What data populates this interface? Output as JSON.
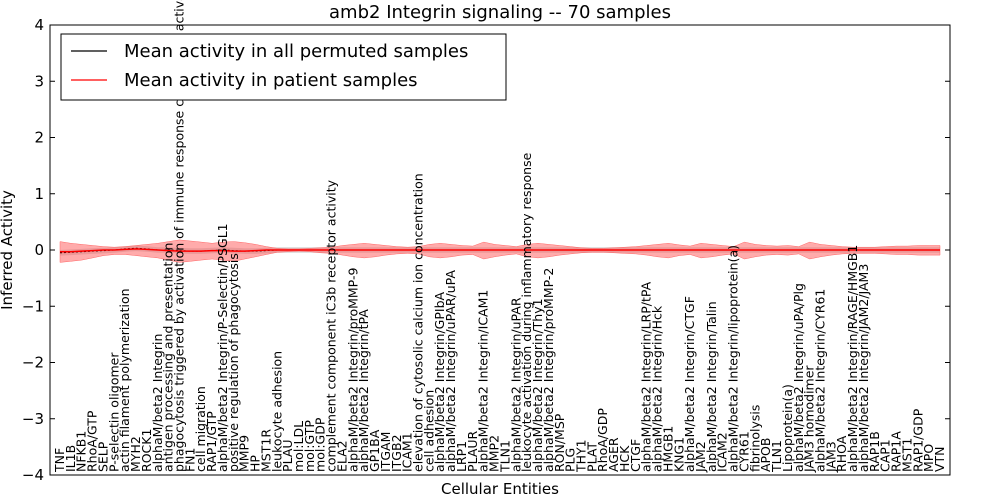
{
  "chart_data": {
    "type": "line",
    "title": "amb2 Integrin signaling -- 70 samples",
    "xlabel": "Cellular Entities",
    "ylabel": "Inferred Activity",
    "ylim": [
      -4,
      4
    ],
    "yticks": [
      "−4",
      "−3",
      "−2",
      "−1",
      "0",
      "1",
      "2",
      "3",
      "4"
    ],
    "legend": {
      "position": "top-left",
      "entries": [
        {
          "label": "Mean activity in all permuted samples",
          "color": "#000000"
        },
        {
          "label": "Mean activity in patient samples",
          "color": "#ff0000"
        }
      ]
    },
    "colors": {
      "patient_line": "#ff0000",
      "patient_band": "#ff6666",
      "permuted_line": "#000000",
      "permuted_band": "#bbbbbb"
    },
    "categories": [
      "TNF",
      "IL1B",
      "NFKB1",
      "RhoA/GTP",
      "SELP",
      "P-selectin oligomer",
      "actin filament polymerization",
      "MYH2",
      "ROCK1",
      "alphaM/beta2 Integrin",
      "antigen processing and presentation",
      "phagocytosis triggered by activation of immune response cell surface activating receptor",
      "FN1",
      "cell migration",
      "RAP1/GTP",
      "alphaM/beta2 Integrin/P-Selectin/PSGL1",
      "positive regulation of phagocytosis",
      "MMP9",
      "HP",
      "MST1R",
      "leukocyte adhesion",
      "PLAU",
      "mol:LDL",
      "mol:GTP",
      "mol:GDP",
      "complement component iC3b receptor activity",
      "ELA2",
      "alphaM/beta2 Integrin/proMMP-9",
      "alphaM/beta2 Integrin/tPA",
      "GP1BA",
      "ITGAM",
      "ITGB2",
      "ICAM1",
      "elevation of cytosolic calcium ion concentration",
      "cell adhesion",
      "alphaM/beta2 Integrin/GPIbA",
      "alphaM/beta2 Integrin/uPAR/uPA",
      "LRP1",
      "PLAUR",
      "alphaM/beta2 Integrin/ICAM1",
      "MMP2",
      "TLN1",
      "alphaM/beta2 Integrin/uPAR",
      "leukocyte activation during inflammatory response",
      "alphaM/beta2 Integrin/Thy1",
      "alphaM/beta2 Integrin/proMMP-2",
      "RON/MSP",
      "PLG",
      "THY1",
      "PLAT",
      "RhoA/GDP",
      "AGER",
      "HCK",
      "CTGF",
      "alphaM/beta2 Integrin/LRP/tPA",
      "alphaM/beta2 Integrin/Hck",
      "HMGB1",
      "KNG1",
      "alphaM/beta2 Integrin/CTGF",
      "JAM2",
      "alphaM/beta2 Integrin/Talin",
      "ICAM2",
      "alphaM/beta2 Integrin/lipoprotein(a)",
      "CYR61",
      "fibrinolysis",
      "APOB",
      "TLN1",
      "Lipoprotein(a)",
      "alphaM/beta2 Integrin/uPA/Plg",
      "JAM3 homodimer",
      "alphaM/beta2 Integrin/CYR61",
      "JAM3",
      "RHOA",
      "alphaM/beta2 Integrin/RAGE/HMGB1",
      "alphaM/beta2 Integrin/JAM2/JAM3",
      "RAP1B",
      "CAP1",
      "RAP1A",
      "MST1",
      "RAP1/GDP",
      "MPO",
      "VTN"
    ],
    "series": [
      {
        "name": "Mean activity in all permuted samples",
        "values": [
          -0.05,
          -0.04,
          -0.03,
          -0.02,
          -0.01,
          0.0,
          0.02,
          0.03,
          0.02,
          0.0,
          0.0,
          -0.01,
          -0.02,
          -0.02,
          -0.01,
          0.0,
          -0.01,
          -0.02,
          -0.02,
          -0.01,
          0.0,
          0.0,
          0.0,
          0.0,
          0.0,
          0.0,
          0.0,
          0.0,
          0.0,
          0.0,
          0.0,
          0.0,
          0.0,
          0.0,
          0.0,
          0.0,
          0.0,
          0.0,
          0.0,
          0.0,
          0.0,
          0.0,
          0.0,
          0.0,
          0.0,
          0.0,
          0.0,
          0.0,
          0.0,
          0.0,
          0.0,
          0.0,
          0.0,
          0.0,
          0.0,
          0.0,
          0.0,
          0.0,
          0.0,
          0.0,
          0.0,
          0.0,
          0.0,
          0.0,
          0.0,
          0.0,
          0.0,
          0.0,
          0.0,
          0.0,
          0.0,
          0.0,
          0.0,
          0.0,
          0.0,
          0.0,
          0.0,
          0.0,
          0.0,
          0.0,
          0.0,
          0.0
        ],
        "band": 0.05
      },
      {
        "name": "Mean activity in patient samples",
        "values": [
          -0.03,
          -0.03,
          -0.02,
          -0.01,
          0.0,
          0.0,
          0.01,
          0.02,
          0.01,
          0.0,
          -0.01,
          -0.02,
          -0.02,
          -0.02,
          -0.01,
          -0.01,
          -0.02,
          -0.02,
          -0.01,
          0.0,
          0.0,
          0.0,
          0.0,
          0.0,
          0.0,
          0.0,
          0.0,
          0.0,
          0.0,
          0.0,
          0.0,
          0.0,
          0.0,
          0.0,
          0.0,
          0.0,
          0.0,
          0.0,
          0.0,
          0.0,
          0.0,
          0.0,
          0.0,
          0.0,
          0.0,
          0.0,
          0.0,
          0.0,
          0.0,
          0.0,
          0.0,
          0.0,
          0.0,
          0.0,
          0.0,
          0.0,
          0.0,
          0.0,
          0.0,
          0.0,
          0.0,
          0.0,
          0.0,
          0.0,
          0.0,
          0.0,
          0.0,
          0.0,
          0.0,
          0.0,
          0.0,
          0.0,
          0.0,
          0.0,
          0.0,
          0.0,
          0.0,
          0.0,
          0.0,
          0.0,
          0.0,
          0.0
        ],
        "band_upper": [
          0.15,
          0.12,
          0.1,
          0.08,
          0.06,
          0.05,
          0.06,
          0.08,
          0.1,
          0.12,
          0.15,
          0.18,
          0.16,
          0.14,
          0.12,
          0.14,
          0.15,
          0.13,
          0.1,
          0.06,
          0.03,
          0.02,
          0.02,
          0.03,
          0.04,
          0.05,
          0.08,
          0.1,
          0.12,
          0.1,
          0.08,
          0.06,
          0.05,
          0.06,
          0.1,
          0.12,
          0.1,
          0.08,
          0.07,
          0.14,
          0.1,
          0.08,
          0.06,
          0.1,
          0.12,
          0.1,
          0.08,
          0.06,
          0.04,
          0.03,
          0.03,
          0.04,
          0.05,
          0.06,
          0.08,
          0.1,
          0.12,
          0.09,
          0.07,
          0.12,
          0.1,
          0.08,
          0.06,
          0.14,
          0.1,
          0.08,
          0.07,
          0.08,
          0.06,
          0.14,
          0.1,
          0.08,
          0.06,
          0.05,
          0.05,
          0.05,
          0.06,
          0.07,
          0.07,
          0.08,
          0.08,
          0.08
        ],
        "band_lower": [
          -0.22,
          -0.2,
          -0.18,
          -0.14,
          -0.1,
          -0.08,
          -0.08,
          -0.1,
          -0.12,
          -0.14,
          -0.18,
          -0.22,
          -0.2,
          -0.18,
          -0.16,
          -0.18,
          -0.2,
          -0.16,
          -0.12,
          -0.08,
          -0.04,
          -0.03,
          -0.02,
          -0.03,
          -0.05,
          -0.06,
          -0.09,
          -0.12,
          -0.14,
          -0.12,
          -0.09,
          -0.07,
          -0.06,
          -0.07,
          -0.12,
          -0.14,
          -0.12,
          -0.09,
          -0.08,
          -0.16,
          -0.12,
          -0.09,
          -0.07,
          -0.12,
          -0.14,
          -0.12,
          -0.09,
          -0.07,
          -0.05,
          -0.04,
          -0.04,
          -0.05,
          -0.06,
          -0.07,
          -0.09,
          -0.12,
          -0.14,
          -0.1,
          -0.08,
          -0.14,
          -0.12,
          -0.09,
          -0.07,
          -0.16,
          -0.12,
          -0.09,
          -0.08,
          -0.09,
          -0.07,
          -0.16,
          -0.12,
          -0.09,
          -0.07,
          -0.06,
          -0.06,
          -0.06,
          -0.07,
          -0.08,
          -0.08,
          -0.09,
          -0.09,
          -0.09
        ]
      }
    ]
  }
}
